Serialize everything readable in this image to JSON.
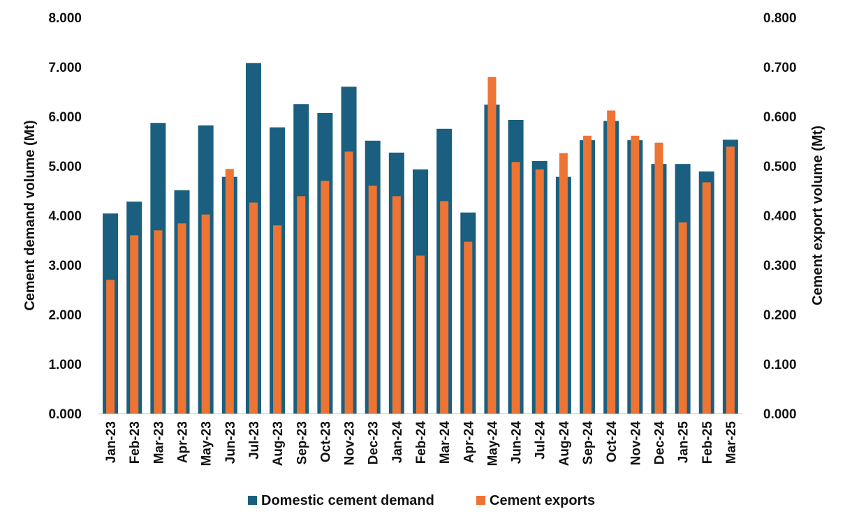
{
  "chart_data": {
    "type": "bar",
    "categories": [
      "Jan-23",
      "Feb-23",
      "Mar-23",
      "Apr-23",
      "May-23",
      "Jun-23",
      "Jul-23",
      "Aug-23",
      "Sep-23",
      "Oct-23",
      "Nov-23",
      "Dec-23",
      "Jan-24",
      "Feb-24",
      "Mar-24",
      "Apr-24",
      "May-24",
      "Jun-24",
      "Jul-24",
      "Aug-24",
      "Sep-24",
      "Oct-24",
      "Nov-24",
      "Dec-24",
      "Jan-25",
      "Feb-25",
      "Mar-25"
    ],
    "series": [
      {
        "name": "Domestic cement demand",
        "axis": "left",
        "color": "#1a5f7f",
        "values": [
          4.04,
          4.28,
          5.87,
          4.51,
          5.82,
          4.78,
          7.08,
          5.78,
          6.25,
          6.07,
          6.6,
          5.51,
          5.27,
          4.93,
          5.75,
          4.06,
          6.24,
          5.93,
          5.1,
          4.78,
          5.52,
          5.91,
          5.52,
          5.04,
          5.04,
          4.89,
          5.53
        ]
      },
      {
        "name": "Cement exports",
        "axis": "right",
        "color": "#ed7433",
        "values": [
          0.27,
          0.36,
          0.37,
          0.384,
          0.402,
          0.494,
          0.426,
          0.38,
          0.439,
          0.47,
          0.529,
          0.46,
          0.439,
          0.319,
          0.429,
          0.347,
          0.68,
          0.508,
          0.493,
          0.526,
          0.561,
          0.612,
          0.561,
          0.547,
          0.386,
          0.467,
          0.539
        ]
      }
    ],
    "y_left": {
      "label": "Cement demand volume (Mt)",
      "min": 0,
      "max": 8,
      "step": 1,
      "ticks": [
        "0.000",
        "1.000",
        "2.000",
        "3.000",
        "4.000",
        "5.000",
        "6.000",
        "7.000",
        "8.000"
      ]
    },
    "y_right": {
      "label": "Cement export volume (Mt)",
      "min": 0,
      "max": 0.8,
      "step": 0.1,
      "ticks": [
        "0.000",
        "0.100",
        "0.200",
        "0.300",
        "0.400",
        "0.500",
        "0.600",
        "0.700",
        "0.800"
      ]
    },
    "grid": false,
    "legend_position": "bottom-center"
  }
}
